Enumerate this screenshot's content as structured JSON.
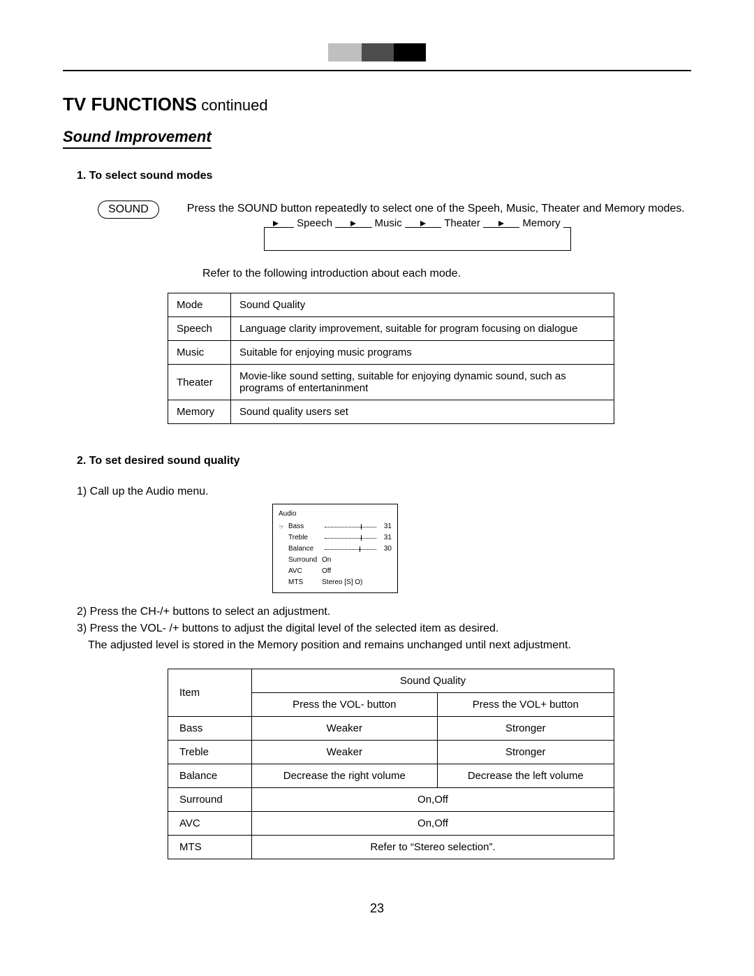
{
  "heading": {
    "bold": "TV FUNCTIONS",
    "cont": " continued"
  },
  "subheading": "Sound Improvement",
  "section1": {
    "title": "1. To select sound modes",
    "button_label": "SOUND",
    "intro": "Press the SOUND button repeatedly to select one of the Speeh, Music, Theater and Memory modes.",
    "cycle": [
      "Speech",
      "Music",
      "Theater",
      "Memory"
    ],
    "refer": "Refer to the following introduction about each mode.",
    "table": {
      "head": [
        "Mode",
        "Sound Quality"
      ],
      "rows": [
        [
          "Speech",
          "Language clarity improvement, suitable for program focusing on dialogue"
        ],
        [
          "Music",
          "Suitable for enjoying music programs"
        ],
        [
          "Theater",
          "Movie-like sound setting, suitable for enjoying dynamic sound, such as programs of entertaninment"
        ],
        [
          "Memory",
          "Sound quality users set"
        ]
      ]
    }
  },
  "section2": {
    "title": "2. To set  desired sound quality",
    "step1": "1) Call up the Audio menu.",
    "audio_menu": {
      "title": "Audio",
      "rows": [
        {
          "label": "Bass",
          "type": "slider",
          "value": "31",
          "pos": 70,
          "hand": true
        },
        {
          "label": "Treble",
          "type": "slider",
          "value": "31",
          "pos": 70,
          "hand": false
        },
        {
          "label": "Balance",
          "type": "slider",
          "value": "30",
          "pos": 68,
          "hand": false
        },
        {
          "label": "Surround",
          "type": "text",
          "text": "On"
        },
        {
          "label": "AVC",
          "type": "text",
          "text": "Off"
        },
        {
          "label": "MTS",
          "type": "text",
          "text": "Stereo [S] O)"
        }
      ]
    },
    "step2": "2) Press the CH-/+  buttons to select an adjustment.",
    "step3": "3) Press the VOL- /+  buttons to adjust the digital level of the selected item as desired.",
    "step3b": "The adjusted level is stored in the Memory position and remains unchanged until next adjustment.",
    "table": {
      "head_item": "Item",
      "head_sq": "Sound Quality",
      "head_minus": "Press the VOL- button",
      "head_plus": "Press the VOL+ button",
      "rows": [
        {
          "item": "Bass",
          "minus": "Weaker",
          "plus": "Stronger"
        },
        {
          "item": "Treble",
          "minus": "Weaker",
          "plus": "Stronger"
        },
        {
          "item": "Balance",
          "minus": "Decrease the right volume",
          "plus": "Decrease the left volume"
        },
        {
          "item": "Surround",
          "span": "On,Off"
        },
        {
          "item": "AVC",
          "span": "On,Off"
        },
        {
          "item": "MTS",
          "span": "Refer to “Stereo selection”."
        }
      ]
    }
  },
  "page_number": "23"
}
